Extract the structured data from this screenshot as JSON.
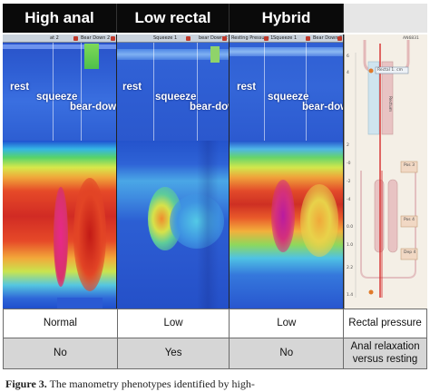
{
  "headers": [
    "High anal",
    "Low rectal",
    "Hybrid"
  ],
  "panels": [
    {
      "toolbar_labels": [
        "at 2",
        "Bear Down 2"
      ],
      "phases": [
        "rest",
        "squeeze",
        "bear-down"
      ]
    },
    {
      "toolbar_labels": [
        "Squeeze 1",
        "bear Down 2"
      ],
      "phases": [
        "rest",
        "squeeze",
        "bear-down"
      ]
    },
    {
      "toolbar_labels": [
        "Resting Pressure 1",
        "Squeeze 1",
        "Bear Down 2"
      ],
      "phases": [
        "rest",
        "squeeze",
        "bear-down"
      ]
    }
  ],
  "diagram": {
    "id_label": "AN6831",
    "marker_label": "Rectal 1. cm",
    "side_label": "Rectum",
    "box_labels": [
      "Pos 3",
      "Pos 4",
      "Dep 4"
    ],
    "scale": [
      "6",
      "4",
      "2",
      "-0",
      "-2",
      "-4",
      "0.0",
      "1.0",
      "2.2",
      "1.4"
    ],
    "colors": {
      "canal": "#e8c3c3",
      "line": "#d62b2b",
      "shape": "#cfe4ef"
    }
  },
  "table": {
    "row1": [
      "Normal",
      "Low",
      "Low",
      "Rectal pressure"
    ],
    "row2": [
      "No",
      "Yes",
      "No",
      "Anal relaxation versus resting"
    ]
  },
  "caption": {
    "bold": "Figure 3.",
    "text": " The manometry phenotypes identified by high-"
  },
  "colors": {
    "header_bg": "#0a0a0a",
    "blue_base": "#2f5fd4",
    "row_gray": "#d6d6d6"
  }
}
